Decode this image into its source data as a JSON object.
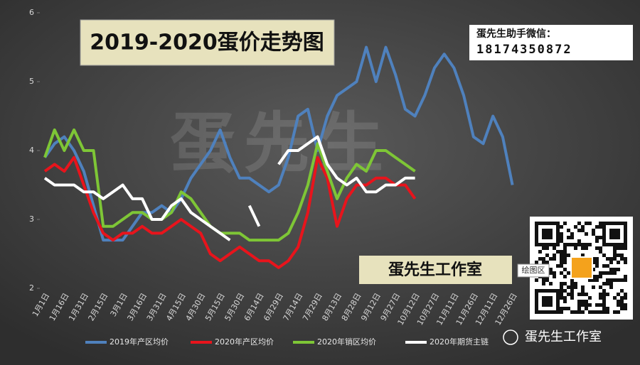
{
  "chart_data": {
    "type": "line",
    "title": "2019-2020蛋价走势图",
    "categories": [
      "1月1日",
      null,
      "1月16日",
      null,
      "1月31日",
      null,
      "2月15日",
      null,
      "3月1日",
      null,
      "3月16日",
      null,
      "3月31日",
      null,
      "4月15日",
      null,
      "4月30日",
      null,
      "5月15日",
      null,
      "5月30日",
      null,
      "6月14日",
      null,
      "6月29日",
      null,
      "7月14日",
      null,
      "7月29日",
      null,
      "8月13日",
      null,
      "8月28日",
      null,
      "9月12日",
      null,
      "9月27日",
      null,
      "10月12日",
      null,
      "10月27日",
      null,
      "11月11日",
      null,
      "11月26日",
      null,
      "12月11日",
      null,
      "12月26日"
    ],
    "series": [
      {
        "name": "2019年产区均价",
        "color": "#4f81bd",
        "values": [
          3.9,
          4.1,
          4.2,
          4.0,
          3.7,
          3.2,
          2.7,
          2.7,
          2.7,
          2.9,
          3.1,
          3.1,
          3.2,
          3.1,
          3.3,
          3.6,
          3.8,
          4.0,
          4.3,
          3.9,
          3.6,
          3.6,
          3.5,
          3.4,
          3.5,
          3.9,
          4.5,
          4.6,
          4.0,
          4.5,
          4.8,
          4.9,
          5.0,
          5.5,
          5.0,
          5.5,
          5.1,
          4.6,
          4.5,
          4.8,
          5.2,
          5.4,
          5.2,
          4.8,
          4.2,
          4.1,
          4.5,
          4.2,
          3.5
        ]
      },
      {
        "name": "2020年产区均价",
        "color": "#e8141c",
        "values": [
          3.7,
          3.8,
          3.7,
          3.9,
          3.5,
          3.1,
          2.8,
          2.7,
          2.8,
          2.8,
          2.9,
          2.8,
          2.8,
          2.9,
          3.0,
          2.9,
          2.8,
          2.5,
          2.4,
          2.5,
          2.6,
          2.5,
          2.4,
          2.4,
          2.3,
          2.4,
          2.6,
          3.1,
          3.9,
          3.6,
          2.9,
          3.3,
          3.5,
          3.5,
          3.6,
          3.6,
          3.5,
          3.5,
          3.3,
          null,
          null,
          null,
          null,
          null,
          null,
          null,
          null,
          null,
          null
        ]
      },
      {
        "name": "2020年销区均价",
        "color": "#7ec636",
        "values": [
          3.9,
          4.3,
          4.0,
          4.3,
          4.0,
          4.0,
          2.9,
          2.9,
          3.0,
          3.1,
          3.1,
          3.0,
          3.0,
          3.1,
          3.4,
          3.3,
          3.1,
          2.9,
          2.8,
          2.8,
          2.8,
          2.7,
          2.7,
          2.7,
          2.7,
          2.8,
          3.1,
          3.5,
          4.1,
          3.7,
          3.3,
          3.6,
          3.8,
          3.7,
          4.0,
          4.0,
          3.9,
          3.8,
          3.7,
          null,
          null,
          null,
          null,
          null,
          null,
          null,
          null,
          null,
          null
        ]
      },
      {
        "name": "2020年期货主链",
        "color": "#ffffff",
        "values": [
          3.6,
          3.5,
          3.5,
          3.5,
          3.4,
          3.4,
          3.3,
          3.4,
          3.5,
          3.3,
          3.3,
          3.0,
          3.0,
          3.2,
          3.3,
          3.1,
          3.0,
          2.9,
          2.8,
          2.7,
          null,
          3.2,
          2.9,
          null,
          3.8,
          4.0,
          4.0,
          4.1,
          4.2,
          3.8,
          3.6,
          3.5,
          3.6,
          3.4,
          3.4,
          3.5,
          3.5,
          3.6,
          3.6,
          null,
          null,
          null,
          null,
          null,
          null,
          null,
          null,
          null,
          null
        ]
      }
    ],
    "ylim": [
      2,
      6
    ],
    "yticks": [
      2,
      3,
      4,
      5,
      6
    ],
    "wechat_label": "蛋先生助手微信：",
    "wechat_id": "18174350872",
    "studio_label": "蛋先生工作室",
    "plot_area_label": "绘图区",
    "watermark": "蛋先生",
    "footer": "蛋先生工作室"
  }
}
